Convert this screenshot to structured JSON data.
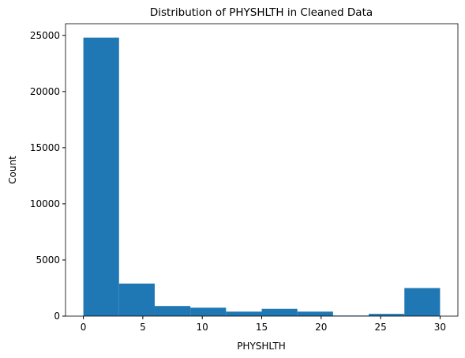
{
  "chart_data": {
    "type": "histogram",
    "title": "Distribution of PHYSHLTH in Cleaned Data",
    "xlabel": "PHYSHLTH",
    "ylabel": "Count",
    "bins": [
      0,
      3,
      6,
      9,
      12,
      15,
      18,
      21,
      24,
      27,
      30
    ],
    "values": [
      24800,
      2900,
      900,
      750,
      400,
      650,
      400,
      50,
      200,
      2500
    ],
    "color": "#1f77b4",
    "xlim": [
      -1.5,
      31.5
    ],
    "ylim": [
      0,
      26040
    ],
    "xticks": [
      0,
      5,
      10,
      15,
      20,
      25,
      30
    ],
    "yticks": [
      0,
      5000,
      10000,
      15000,
      20000,
      25000
    ]
  }
}
